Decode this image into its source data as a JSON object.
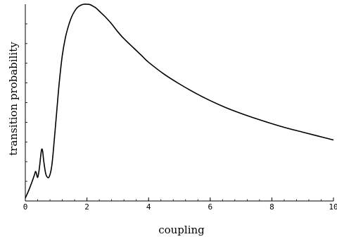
{
  "chart_data": {
    "type": "line",
    "title": "",
    "xlabel": "coupling",
    "ylabel": "transition probability",
    "xlim": [
      0,
      10
    ],
    "ylim": [
      0,
      1
    ],
    "x_ticks": [
      0,
      2,
      4,
      6,
      8,
      10
    ],
    "x_tick_labels": [
      "0",
      "2",
      "4",
      "6",
      "8",
      "10"
    ],
    "x_minor_step": 0.4,
    "y_ticks": [],
    "y_minor_ticks": [
      0.1,
      0.2,
      0.3,
      0.4,
      0.5,
      0.6,
      0.7,
      0.8,
      0.9
    ],
    "grid": false,
    "series": [
      {
        "color": "#000000",
        "x": [
          0.0,
          0.1,
          0.2,
          0.3,
          0.33,
          0.36,
          0.4,
          0.45,
          0.5,
          0.53,
          0.56,
          0.6,
          0.66,
          0.72,
          0.78,
          0.85,
          0.9,
          1.0,
          1.1,
          1.2,
          1.3,
          1.4,
          1.5,
          1.6,
          1.7,
          1.8,
          1.9,
          2.0,
          2.1,
          2.2,
          2.3,
          2.4,
          2.6,
          2.8,
          3.0,
          3.2,
          3.5,
          3.8,
          4.0,
          4.5,
          5.0,
          5.5,
          6.0,
          6.5,
          7.0,
          7.5,
          8.0,
          8.5,
          9.0,
          9.5,
          10.0
        ],
        "y": [
          0.015,
          0.05,
          0.09,
          0.135,
          0.15,
          0.14,
          0.12,
          0.16,
          0.23,
          0.262,
          0.255,
          0.2,
          0.14,
          0.12,
          0.125,
          0.17,
          0.24,
          0.42,
          0.6,
          0.74,
          0.83,
          0.89,
          0.935,
          0.965,
          0.985,
          0.995,
          1.0,
          1.0,
          0.998,
          0.99,
          0.98,
          0.965,
          0.935,
          0.9,
          0.86,
          0.825,
          0.78,
          0.735,
          0.705,
          0.645,
          0.595,
          0.55,
          0.51,
          0.475,
          0.445,
          0.418,
          0.393,
          0.37,
          0.35,
          0.33,
          0.31
        ]
      }
    ]
  }
}
